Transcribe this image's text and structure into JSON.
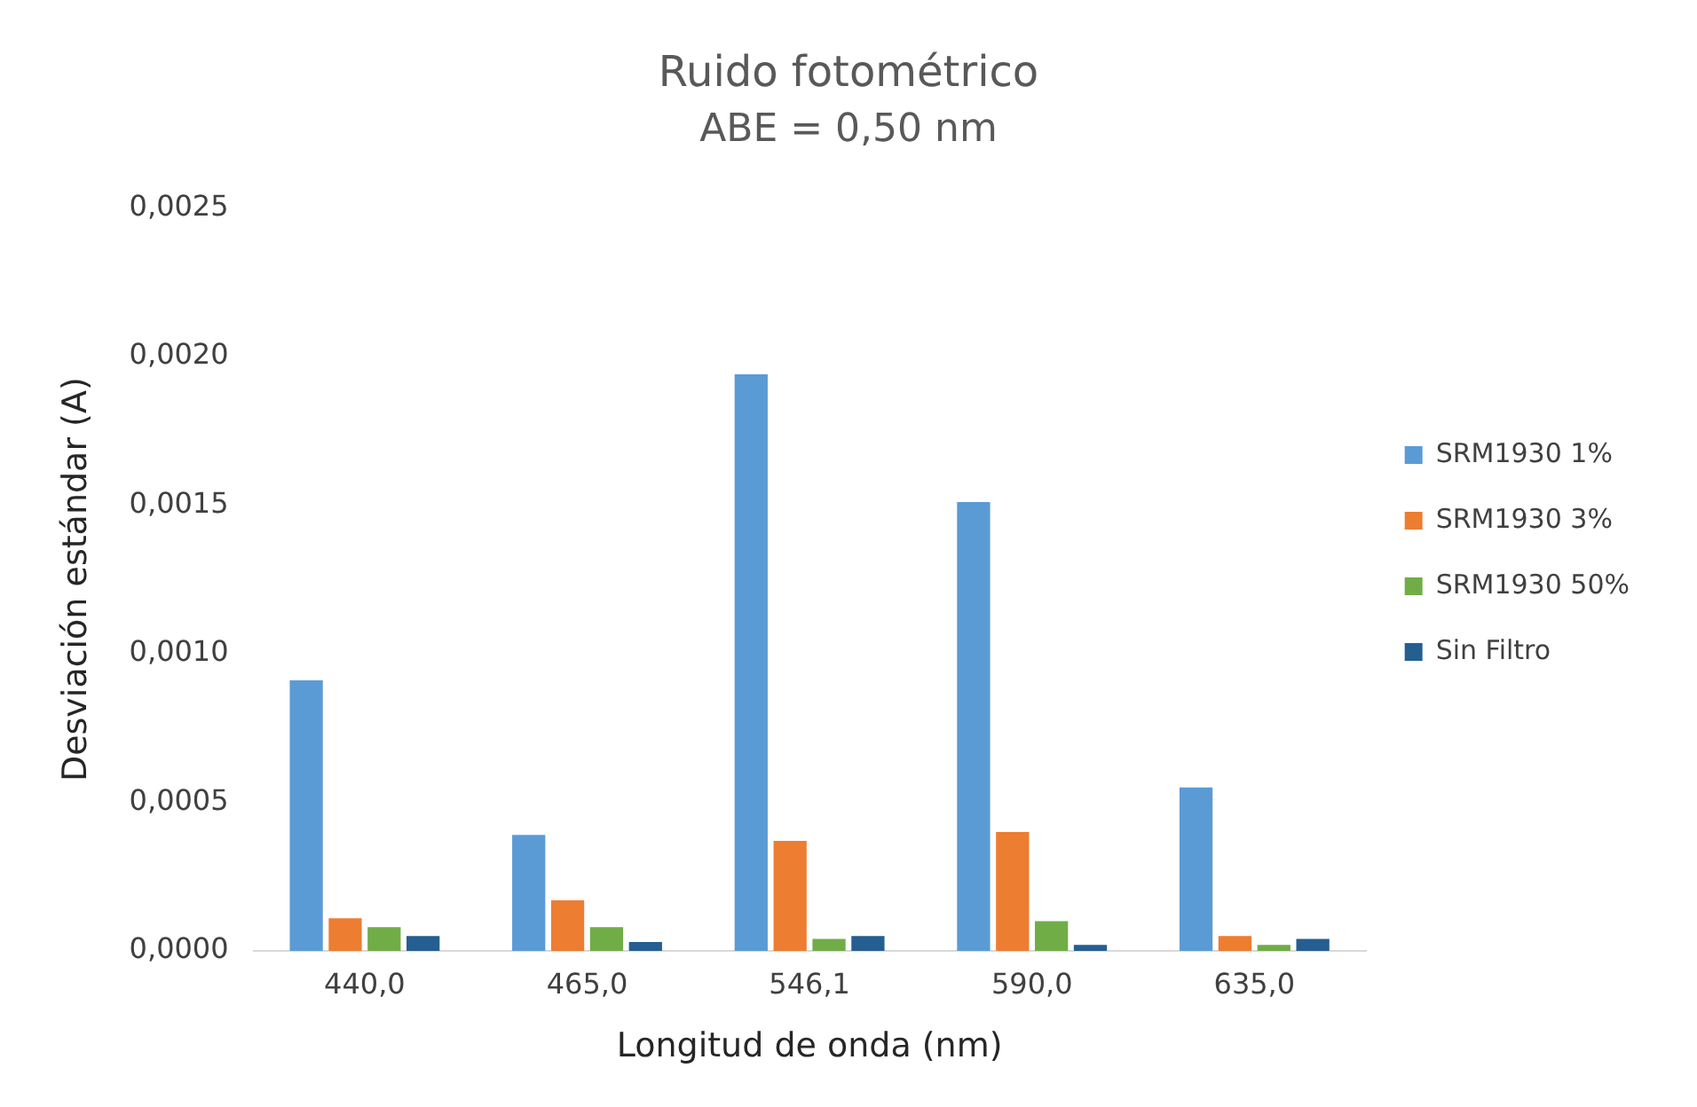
{
  "chart_data": {
    "type": "bar",
    "title": "Ruido fotométrico",
    "subtitle": "ABE = 0,50 nm",
    "xlabel": "Longitud de onda (nm)",
    "ylabel": "Desviación estándar (A)",
    "categories": [
      "440,0",
      "465,0",
      "546,1",
      "590,0",
      "635,0"
    ],
    "series": [
      {
        "name": "SRM1930 1%",
        "color": "#5b9bd5",
        "values": [
          0.00091,
          0.00039,
          0.00194,
          0.00151,
          0.00055
        ]
      },
      {
        "name": "SRM1930 3%",
        "color": "#ed7d31",
        "values": [
          0.00011,
          0.00017,
          0.00037,
          0.0004,
          5e-05
        ]
      },
      {
        "name": "SRM1930 50%",
        "color": "#70ad47",
        "values": [
          8e-05,
          8e-05,
          4e-05,
          0.0001,
          2e-05
        ]
      },
      {
        "name": "Sin Filtro",
        "color": "#255e91",
        "values": [
          5e-05,
          3e-05,
          5e-05,
          2e-05,
          4e-05
        ]
      }
    ],
    "ylim": [
      0,
      0.0025
    ],
    "yticks": [
      {
        "value": 0,
        "label": "0,0000"
      },
      {
        "value": 0.0005,
        "label": "0,0005"
      },
      {
        "value": 0.001,
        "label": "0,0010"
      },
      {
        "value": 0.0015,
        "label": "0,0015"
      },
      {
        "value": 0.002,
        "label": "0,0020"
      },
      {
        "value": 0.0025,
        "label": "0,0025"
      }
    ],
    "grid": false,
    "legend": "right"
  }
}
